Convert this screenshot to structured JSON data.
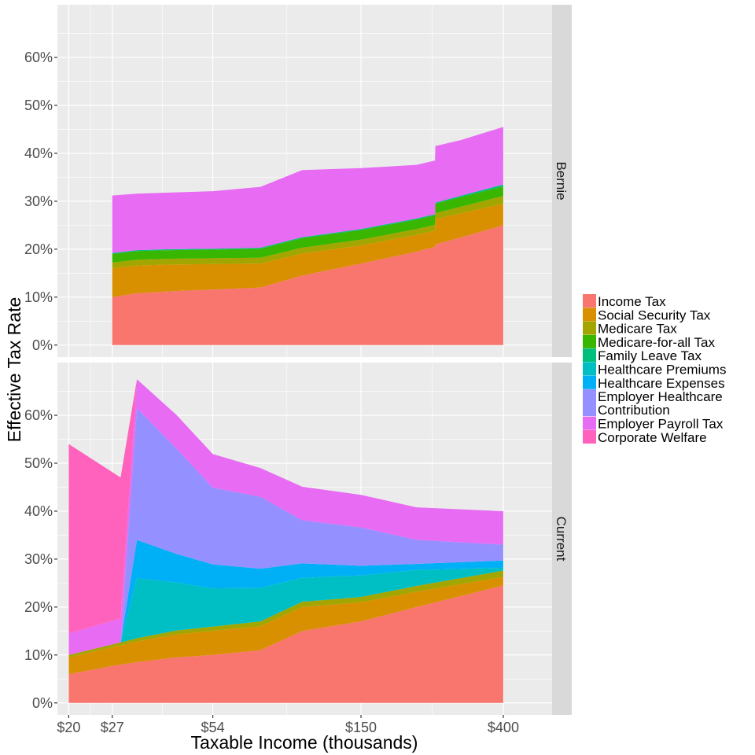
{
  "chart_data": {
    "type": "area",
    "stacked": true,
    "faceted": true,
    "xscale": "log",
    "xlabel": "Taxable Income (thousands)",
    "ylabel": "Effective Tax Rate",
    "x_ticks": [
      20,
      27,
      54,
      150,
      400
    ],
    "x_tick_labels": [
      "$20",
      "$27",
      "$54",
      "$150",
      "$400"
    ],
    "xlim": [
      18.5,
      560
    ],
    "y_ticks": [
      0,
      10,
      20,
      30,
      40,
      50,
      60
    ],
    "y_tick_labels": [
      "0%",
      "10%",
      "20%",
      "30%",
      "40%",
      "50%",
      "60%"
    ],
    "ylim": [
      -2.5,
      71
    ],
    "grid": true,
    "legend_position": "right",
    "legend": [
      {
        "label": "Income Tax",
        "color": "#F8766D"
      },
      {
        "label": "Social Security Tax",
        "color": "#D89000"
      },
      {
        "label": "Medicare Tax",
        "color": "#A3A500"
      },
      {
        "label": "Medicare-for-all Tax",
        "color": "#39B600"
      },
      {
        "label": "Family Leave Tax",
        "color": "#00BF7D"
      },
      {
        "label": "Healthcare Premiums",
        "color": "#00BFC4"
      },
      {
        "label": "Healthcare Expenses",
        "color": "#00B0F6"
      },
      {
        "label": "Employer Healthcare",
        "label2": "Contribution",
        "color": "#9590FF"
      },
      {
        "label": "Employer Payroll Tax",
        "color": "#E76BF3"
      },
      {
        "label": "Corporate Welfare",
        "color": "#FF62BC"
      }
    ],
    "panels": [
      {
        "strip": "Bernie",
        "x": [
          27,
          32,
          40,
          54,
          75,
          100,
          150,
          220,
          250,
          250.5,
          300,
          400
        ],
        "series": [
          {
            "name": "Income Tax",
            "values": [
              10,
              10.8,
              11.2,
              11.6,
              12,
              14.5,
              17,
              19.5,
              20.5,
              21,
              22.5,
              25
            ]
          },
          {
            "name": "Social Security Tax",
            "values": [
              6,
              5.8,
              5.6,
              5.3,
              5,
              4.6,
              3.8,
              3.5,
              3.4,
              5.3,
              5,
              4.5
            ]
          },
          {
            "name": "Medicare Tax",
            "values": [
              1.2,
              1.2,
              1.2,
              1.2,
              1.2,
              1.2,
              1.2,
              1.2,
              1.2,
              1.2,
              1.4,
              1.6
            ]
          },
          {
            "name": "Medicare-for-all Tax",
            "values": [
              1.8,
              1.8,
              1.8,
              1.8,
              1.9,
              2,
              2,
              2,
              2,
              2,
              2,
              2
            ]
          },
          {
            "name": "Family Leave Tax",
            "values": [
              0.2,
              0.2,
              0.2,
              0.2,
              0.2,
              0.2,
              0.2,
              0.2,
              0.2,
              0.2,
              0.3,
              0.4
            ]
          },
          {
            "name": "Employer Payroll Tax",
            "values": [
              12,
              11.8,
              11.8,
              12,
              12.7,
              14,
              12.7,
              11.2,
              11.2,
              11.8,
              11.6,
              12
            ]
          }
        ]
      },
      {
        "strip": "Current",
        "x": [
          20,
          28.5,
          28.6,
          32,
          42,
          54,
          75,
          100,
          150,
          220,
          400
        ],
        "series": [
          {
            "name": "Income Tax",
            "values": [
              6,
              8,
              8,
              8.5,
              9.5,
              10,
              11,
              15,
              17,
              20,
              24.5
            ]
          },
          {
            "name": "Social Security Tax",
            "values": [
              3.5,
              4,
              4,
              4.3,
              4.8,
              5,
              5,
              5,
              4,
              3.2,
              1.8
            ]
          },
          {
            "name": "Medicare Tax",
            "values": [
              0.5,
              0.6,
              0.6,
              0.7,
              0.8,
              0.9,
              1,
              1.1,
              1.1,
              1.2,
              1.3
            ]
          },
          {
            "name": "Healthcare Premiums",
            "values": [
              0,
              0,
              0,
              12.5,
              10,
              8,
              7,
              5,
              4.5,
              3.3,
              0.6
            ]
          },
          {
            "name": "Healthcare Expenses",
            "values": [
              0,
              0,
              0,
              8,
              6,
              5,
              4,
              3,
              2,
              1.3,
              1.5
            ]
          },
          {
            "name": "Employer Healthcare Contribution",
            "values": [
              0,
              0,
              0,
              27.5,
              22,
              16,
              15,
              9,
              8,
              5,
              3.3
            ]
          },
          {
            "name": "Employer Payroll Tax",
            "values": [
              4.5,
              5,
              5,
              6,
              7,
              7,
              6,
              7,
              6.8,
              6.8,
              7
            ]
          },
          {
            "name": "Corporate Welfare",
            "values": [
              39.5,
              29.5,
              29.5,
              0,
              0,
              0,
              0,
              0,
              0,
              0,
              0
            ]
          }
        ]
      }
    ]
  }
}
